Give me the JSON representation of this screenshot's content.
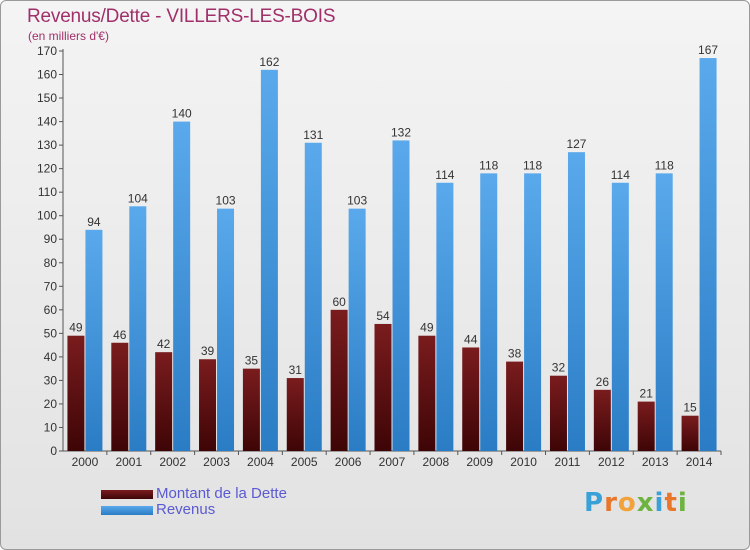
{
  "title": "Revenus/Dette - VILLERS-LES-BOIS",
  "subtitle": "(en milliers d'€)",
  "logo": "Proxiti",
  "colors": {
    "debt": "#6b1214",
    "revenue": "#3b8fd9",
    "title": "#a0306a",
    "legend_text": "#5a5ad2"
  },
  "chart_data": {
    "type": "bar",
    "title": "Revenus/Dette - VILLERS-LES-BOIS",
    "subtitle": "(en milliers d'€)",
    "categories": [
      "2000",
      "2001",
      "2002",
      "2003",
      "2004",
      "2005",
      "2006",
      "2007",
      "2008",
      "2009",
      "2010",
      "2011",
      "2012",
      "2013",
      "2014"
    ],
    "series": [
      {
        "name": "Montant de la Dette",
        "values": [
          49,
          46,
          42,
          39,
          35,
          31,
          60,
          54,
          49,
          44,
          38,
          32,
          26,
          21,
          15
        ]
      },
      {
        "name": "Revenus",
        "values": [
          94,
          104,
          140,
          103,
          162,
          131,
          103,
          132,
          114,
          118,
          118,
          127,
          114,
          118,
          167
        ]
      }
    ],
    "ylim": [
      0,
      170
    ],
    "yticks": [
      0,
      10,
      20,
      30,
      40,
      50,
      60,
      70,
      80,
      90,
      100,
      110,
      120,
      130,
      140,
      150,
      160,
      170
    ],
    "grid": false,
    "legend": "bottom-left"
  }
}
